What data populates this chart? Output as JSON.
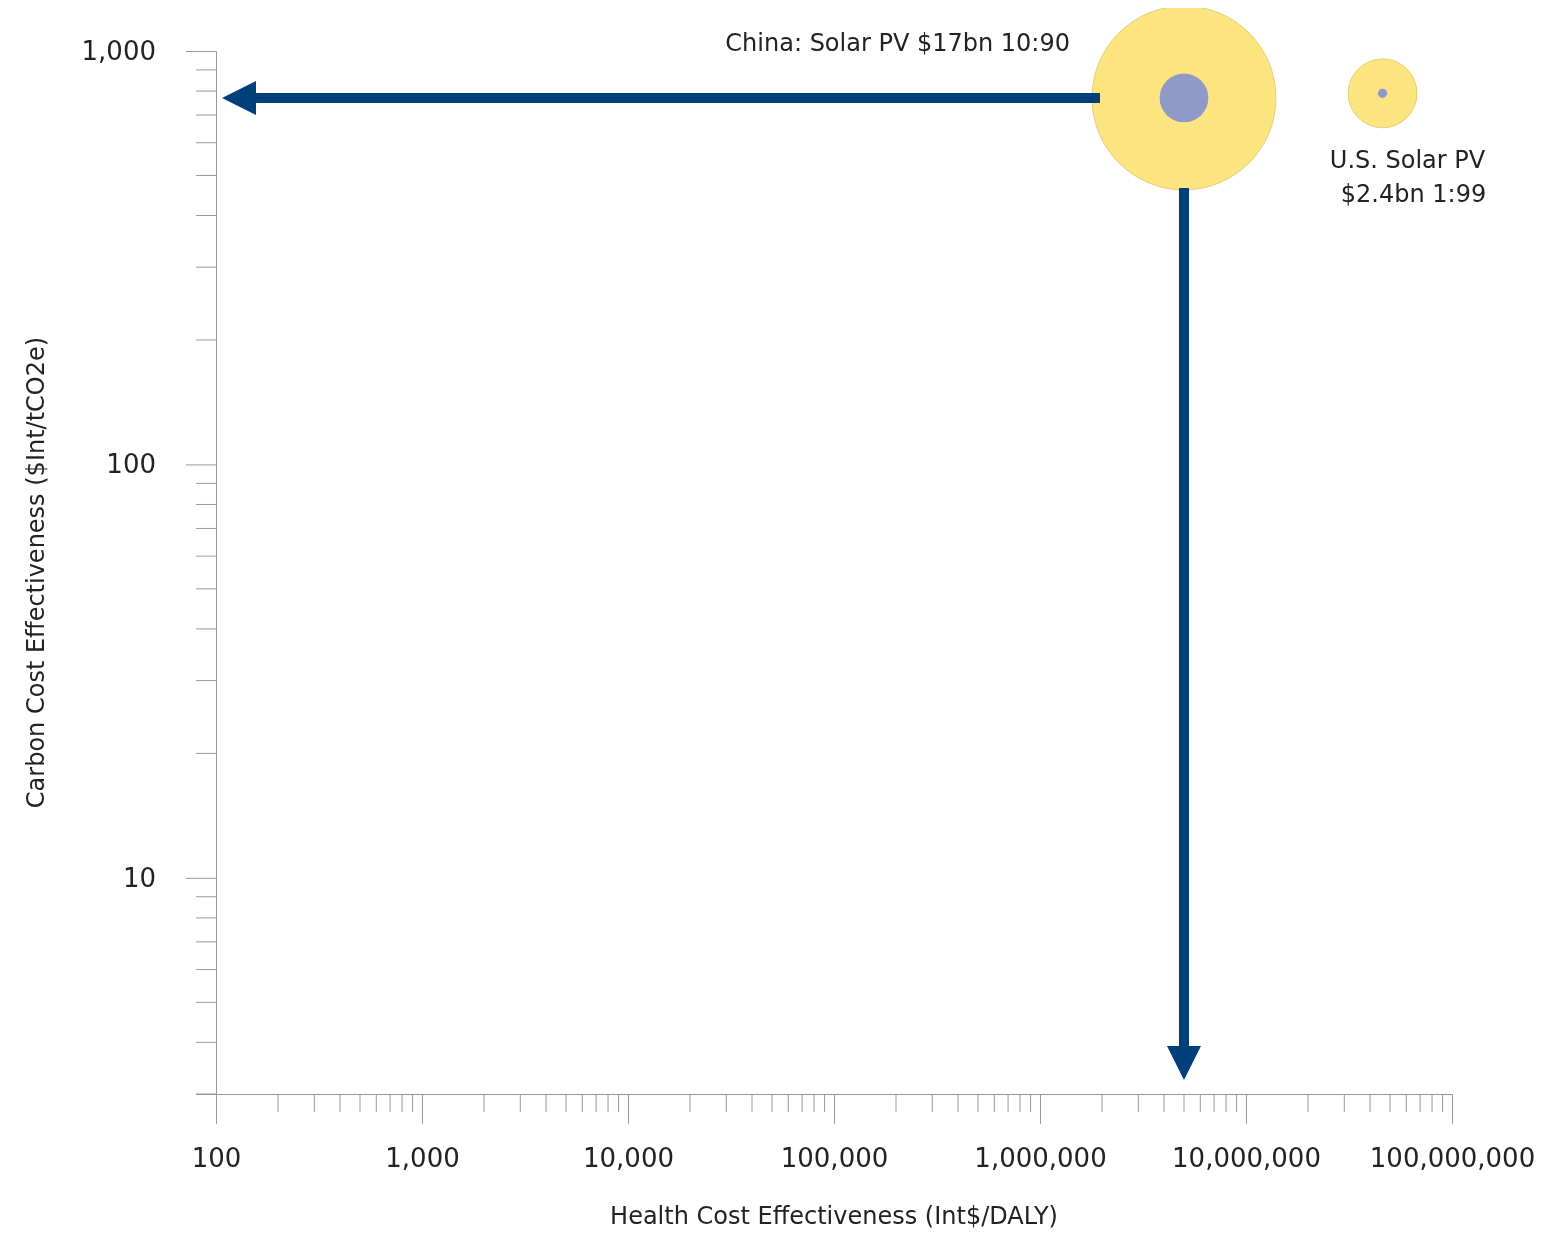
{
  "chart_data": {
    "type": "bubble",
    "xlabel": "Health Cost Effectiveness (Int$/DALY)",
    "ylabel": "Carbon Cost Effectiveness ($Int/tCO2e)",
    "log": "xy",
    "marker": "circle",
    "xlim": [
      100,
      100000000
    ],
    "ylim": [
      3,
      1000
    ],
    "xticks": [
      {
        "value": 100,
        "label": "100"
      },
      {
        "value": 1000,
        "label": "1,000"
      },
      {
        "value": 10000,
        "label": "10,000"
      },
      {
        "value": 100000,
        "label": "100,000"
      },
      {
        "value": 1000000,
        "label": "1,000,000"
      },
      {
        "value": 10000000,
        "label": "10,000,000"
      },
      {
        "value": 100000000,
        "label": "100,000,000"
      }
    ],
    "yticks": [
      {
        "value": 10,
        "label": "10"
      },
      {
        "value": 100,
        "label": "100"
      },
      {
        "value": 1000,
        "label": "1,000"
      }
    ],
    "x": [
      5000000,
      46000000
    ],
    "series": [
      {
        "color": "#fce47f",
        "values": [
          770,
          790
        ],
        "sizes": [
          1,
          0.14
        ]
      },
      {
        "color": "#8f9ac8",
        "values": [
          770,
          790
        ],
        "sizes": [
          0.07,
          0.0025
        ]
      }
    ],
    "annotations": [
      "China: Solar PV $17bn 10:90",
      "U.S. Solar PV $2.4bn 1:99"
    ]
  }
}
